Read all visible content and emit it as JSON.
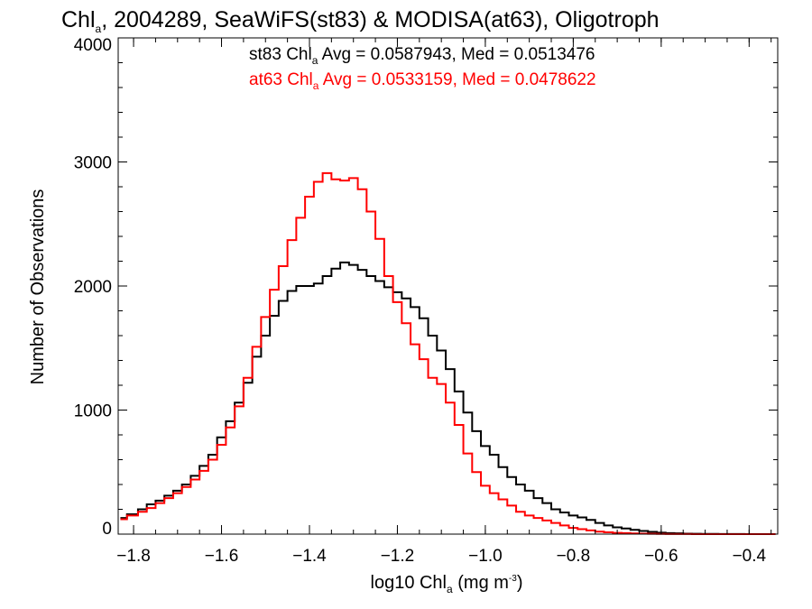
{
  "chart_data": {
    "type": "line",
    "step": true,
    "title": {
      "pre": "Chl",
      "sub": "a",
      "post": ", 2004289, SeaWiFS(st83) & MODISA(at63), Oligotroph"
    },
    "xlabel": {
      "pre": "log10 Chl",
      "sub": "a",
      "mid": " (mg m",
      "sup": "-3",
      "post": ")"
    },
    "ylabel": "Number of Observations",
    "xlim": [
      -1.835,
      -0.335
    ],
    "ylim": [
      0,
      4000
    ],
    "xticks": [
      -1.8,
      -1.6,
      -1.4,
      -1.2,
      -1.0,
      -0.8,
      -0.6,
      -0.4
    ],
    "xtick_labels": [
      "−1.8",
      "−1.6",
      "−1.4",
      "−1.2",
      "−1.0",
      "−0.8",
      "−0.6",
      "−0.4"
    ],
    "yticks": [
      0,
      1000,
      2000,
      3000,
      4000
    ],
    "ytick_labels": [
      "0",
      "1000",
      "2000",
      "3000",
      "4000"
    ],
    "grid": false,
    "series": [
      {
        "color": "#000000",
        "legend": {
          "pre": "st83 Chl",
          "sub": "a",
          "post": " Avg = 0.0587943, Med = 0.0513476"
        },
        "x": [
          -1.83,
          -1.8,
          -1.78,
          -1.76,
          -1.74,
          -1.72,
          -1.7,
          -1.68,
          -1.66,
          -1.64,
          -1.62,
          -1.6,
          -1.58,
          -1.56,
          -1.54,
          -1.52,
          -1.5,
          -1.48,
          -1.46,
          -1.44,
          -1.42,
          -1.4,
          -1.38,
          -1.36,
          -1.34,
          -1.32,
          -1.3,
          -1.28,
          -1.26,
          -1.24,
          -1.22,
          -1.2,
          -1.18,
          -1.16,
          -1.14,
          -1.12,
          -1.1,
          -1.08,
          -1.06,
          -1.04,
          -1.02,
          -1.0,
          -0.98,
          -0.96,
          -0.94,
          -0.92,
          -0.9,
          -0.88,
          -0.86,
          -0.84,
          -0.82,
          -0.8,
          -0.78,
          -0.76,
          -0.74,
          -0.72,
          -0.7,
          -0.68,
          -0.66,
          -0.64,
          -0.62,
          -0.6,
          -0.58,
          -0.56,
          -0.54,
          -0.52,
          -0.5,
          -0.48,
          -0.46,
          -0.44,
          -0.42,
          -0.4,
          -0.38,
          -0.36,
          -0.34
        ],
        "y": [
          130,
          160,
          200,
          240,
          270,
          310,
          350,
          400,
          470,
          550,
          640,
          780,
          910,
          1060,
          1220,
          1430,
          1600,
          1760,
          1880,
          1960,
          2000,
          2000,
          2020,
          2080,
          2140,
          2190,
          2170,
          2130,
          2080,
          2040,
          1990,
          1950,
          1900,
          1830,
          1740,
          1600,
          1480,
          1330,
          1150,
          980,
          830,
          710,
          640,
          540,
          460,
          400,
          350,
          290,
          250,
          200,
          175,
          150,
          135,
          115,
          90,
          70,
          55,
          45,
          35,
          25,
          18,
          12,
          8,
          6,
          4,
          3,
          2,
          2,
          1,
          1,
          1,
          0,
          0,
          0,
          0
        ]
      },
      {
        "color": "#ff0000",
        "legend": {
          "pre": "at63 Chl",
          "sub": "a",
          "post": " Avg = 0.0533159, Med = 0.0478622"
        },
        "x": [
          -1.83,
          -1.8,
          -1.78,
          -1.76,
          -1.74,
          -1.72,
          -1.7,
          -1.68,
          -1.66,
          -1.64,
          -1.62,
          -1.6,
          -1.58,
          -1.56,
          -1.54,
          -1.52,
          -1.5,
          -1.48,
          -1.46,
          -1.44,
          -1.42,
          -1.4,
          -1.38,
          -1.36,
          -1.34,
          -1.32,
          -1.3,
          -1.28,
          -1.26,
          -1.24,
          -1.22,
          -1.2,
          -1.18,
          -1.16,
          -1.14,
          -1.12,
          -1.1,
          -1.08,
          -1.06,
          -1.04,
          -1.02,
          -1.0,
          -0.98,
          -0.96,
          -0.94,
          -0.92,
          -0.9,
          -0.88,
          -0.86,
          -0.84,
          -0.82,
          -0.8,
          -0.78,
          -0.76,
          -0.74,
          -0.72,
          -0.7,
          -0.68,
          -0.66,
          -0.64,
          -0.62,
          -0.6,
          -0.58,
          -0.56,
          -0.54,
          -0.52,
          -0.5,
          -0.48,
          -0.46,
          -0.44,
          -0.42,
          -0.4,
          -0.38,
          -0.36,
          -0.34
        ],
        "y": [
          120,
          150,
          180,
          210,
          250,
          290,
          330,
          380,
          440,
          510,
          600,
          720,
          860,
          1030,
          1260,
          1510,
          1750,
          1970,
          2160,
          2370,
          2550,
          2720,
          2840,
          2910,
          2860,
          2850,
          2870,
          2780,
          2600,
          2380,
          2080,
          1870,
          1700,
          1530,
          1410,
          1260,
          1210,
          1060,
          880,
          650,
          500,
          390,
          330,
          280,
          230,
          180,
          150,
          130,
          110,
          90,
          70,
          50,
          40,
          30,
          20,
          15,
          10,
          8,
          5,
          4,
          3,
          2,
          1,
          1,
          1,
          0,
          0,
          0,
          0,
          0,
          0,
          0,
          0,
          0,
          0
        ]
      }
    ]
  }
}
